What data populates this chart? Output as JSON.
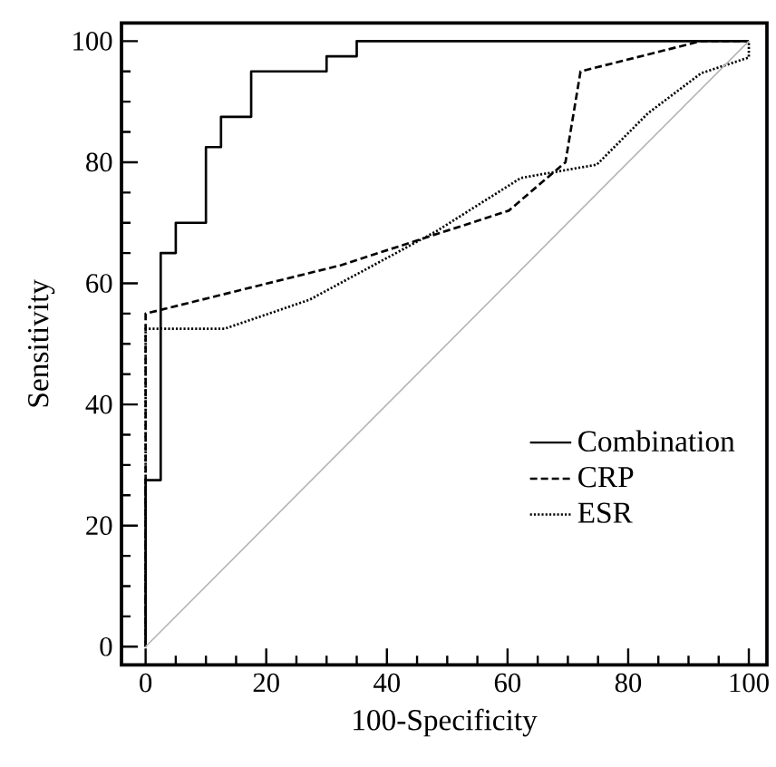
{
  "chart_data": {
    "type": "line",
    "xlabel": "100-Specificity",
    "ylabel": "Sensitivity",
    "xlim": [
      -4,
      103
    ],
    "ylim": [
      -3,
      103
    ],
    "xticks": [
      0,
      {
        "value": 5,
        "label": null
      },
      {
        "value": 10,
        "label": null
      },
      {
        "value": 15,
        "label": null
      },
      20,
      {
        "value": 25,
        "label": null
      },
      {
        "value": 30,
        "label": null
      },
      {
        "value": 35,
        "label": null
      },
      40,
      {
        "value": 45,
        "label": null
      },
      {
        "value": 50,
        "label": null
      },
      {
        "value": 55,
        "label": null
      },
      60,
      {
        "value": 65,
        "label": null
      },
      {
        "value": 70,
        "label": null
      },
      {
        "value": 75,
        "label": null
      },
      80,
      {
        "value": 85,
        "label": null
      },
      {
        "value": 90,
        "label": null
      },
      {
        "value": 95,
        "label": null
      },
      100
    ],
    "yticks": [
      0,
      {
        "value": 5,
        "label": null
      },
      {
        "value": 10,
        "label": null
      },
      {
        "value": 15,
        "label": null
      },
      20,
      {
        "value": 25,
        "label": null
      },
      {
        "value": 30,
        "label": null
      },
      {
        "value": 35,
        "label": null
      },
      40,
      {
        "value": 45,
        "label": null
      },
      {
        "value": 50,
        "label": null
      },
      {
        "value": 55,
        "label": null
      },
      60,
      {
        "value": 65,
        "label": null
      },
      {
        "value": 70,
        "label": null
      },
      {
        "value": 75,
        "label": null
      },
      80,
      {
        "value": 85,
        "label": null
      },
      {
        "value": 90,
        "label": null
      },
      {
        "value": 95,
        "label": null
      },
      100
    ],
    "grid": false,
    "legend": "bottom right",
    "marker": "none",
    "series": [
      {
        "name": "Combination",
        "color": "#000000",
        "line_style": "solid",
        "x": [
          0,
          0,
          2.5,
          2.5,
          5,
          5,
          10,
          10,
          12.5,
          12.5,
          17.5,
          17.5,
          30,
          30,
          35,
          35,
          100
        ],
        "values": [
          0,
          27.5,
          27.5,
          65,
          65,
          70,
          70,
          82.5,
          82.5,
          87.5,
          87.5,
          95,
          95,
          97.5,
          97.5,
          100,
          100
        ]
      },
      {
        "name": "CRP",
        "color": "#000000",
        "line_style": "dashed",
        "x": [
          0,
          0,
          32.4,
          60.2,
          69.6,
          72.1,
          92.1,
          100
        ],
        "values": [
          0,
          55,
          63,
          72,
          80,
          95,
          100,
          100
        ]
      },
      {
        "name": "ESR",
        "color": "#000000",
        "line_style": "dotted",
        "x": [
          0,
          0,
          13.1,
          27.2,
          48.2,
          62.2,
          74.8,
          83.3,
          92.1,
          100,
          100
        ],
        "values": [
          0,
          52.5,
          52.5,
          57.3,
          68.6,
          77.4,
          79.6,
          88.1,
          94.7,
          97.3,
          100
        ]
      },
      {
        "type": "line",
        "color": "#b4b4b4",
        "line_style": "solid",
        "x": [
          0,
          100
        ],
        "values": [
          0,
          100
        ]
      }
    ]
  }
}
